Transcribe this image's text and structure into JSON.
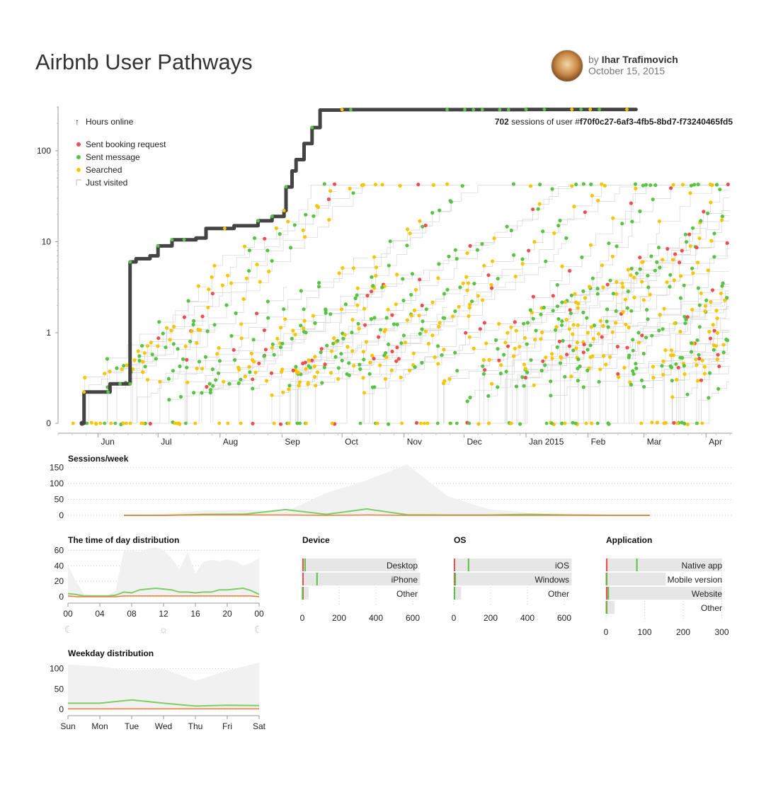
{
  "header": {
    "title": "Airbnb User Pathways",
    "by": "by",
    "author": "Ihar Trafimovich",
    "date": "October 15, 2015"
  },
  "colors": {
    "booking": "#ee4e4e",
    "message": "#57c443",
    "search": "#f7c600",
    "visit": "#cccccc",
    "path": "#444444",
    "area": "#f1f1f1",
    "bar": "#e6e6e6"
  },
  "chart_data": [
    {
      "type": "scatter",
      "id": "pathways",
      "yscale": "symlog",
      "ylabel": "Hours online",
      "yticks": [
        "0",
        "1",
        "10",
        "100"
      ],
      "xticks": [
        "Jun",
        "Jul",
        "Aug",
        "Sep",
        "Oct",
        "Nov",
        "Dec",
        "Jan 2015",
        "Feb",
        "Mar",
        "Apr"
      ],
      "legend": {
        "axis_label": "Hours online",
        "items": [
          {
            "label": "Sent booking request",
            "color": "#ee4e4e"
          },
          {
            "label": "Sent message",
            "color": "#57c443"
          },
          {
            "label": "Searched",
            "color": "#f7c600"
          },
          {
            "label": "Just visited",
            "color": "#cccccc"
          }
        ],
        "placement": "top-left"
      },
      "annotation": {
        "count": "702",
        "text": "sessions of user #",
        "user_id": "f70f0c27-6af3-4fb5-8bd7-f73240465fd5"
      },
      "highlighted_user": {
        "sessions": 702,
        "path": [
          [
            "2014-05-24",
            0
          ],
          [
            "2014-05-25",
            0.17
          ],
          [
            "2014-06-06",
            0.17
          ],
          [
            "2014-06-07",
            0.25
          ],
          [
            "2014-06-17",
            0.25
          ],
          [
            "2014-06-17",
            6
          ],
          [
            "2014-06-20",
            6.5
          ],
          [
            "2014-06-27",
            7
          ],
          [
            "2014-07-01",
            9
          ],
          [
            "2014-07-08",
            10.5
          ],
          [
            "2014-07-20",
            11
          ],
          [
            "2014-07-25",
            14
          ],
          [
            "2014-08-08",
            15
          ],
          [
            "2014-08-20",
            17
          ],
          [
            "2014-08-27",
            19
          ],
          [
            "2014-09-02",
            22
          ],
          [
            "2014-09-03",
            40
          ],
          [
            "2014-09-06",
            60
          ],
          [
            "2014-09-08",
            80
          ],
          [
            "2014-09-12",
            120
          ],
          [
            "2014-09-16",
            180
          ],
          [
            "2014-09-20",
            280
          ],
          [
            "2014-10-01",
            283
          ],
          [
            "2015-01-01",
            285
          ],
          [
            "2015-02-25",
            285
          ]
        ]
      },
      "xrange": [
        "2014-05-12",
        "2015-04-14"
      ],
      "yrange": [
        0,
        300
      ],
      "grid": false
    },
    {
      "type": "area",
      "id": "sessions-week",
      "title": "Sessions/week",
      "yticks": [
        0,
        50,
        100,
        150
      ],
      "ylim": [
        0,
        160
      ],
      "x_weeks": [
        0,
        4,
        8,
        12,
        16,
        20,
        24,
        28,
        32,
        36,
        40,
        44,
        48,
        52
      ],
      "series": [
        {
          "values": [
            0,
            5,
            15,
            18,
            12,
            70,
            110,
            160,
            60,
            20,
            8,
            5,
            3,
            2
          ]
        },
        {
          "values": [
            0,
            0,
            3,
            4,
            18,
            3,
            20,
            2,
            1,
            1,
            3,
            1,
            0,
            0
          ]
        },
        {
          "values": [
            0,
            0,
            1,
            1,
            1,
            0,
            1,
            0,
            0,
            0,
            0,
            0,
            0,
            0
          ]
        }
      ],
      "grid": true
    },
    {
      "type": "area",
      "id": "time-of-day",
      "title": "The time of day distribution",
      "xticks": [
        "00",
        "04",
        "08",
        "12",
        "16",
        "20",
        "00"
      ],
      "yticks": [
        0,
        20,
        40,
        60
      ],
      "ylim": [
        0,
        64
      ],
      "x_hours": [
        0,
        1,
        2,
        3,
        4,
        5,
        6,
        7,
        8,
        9,
        10,
        11,
        12,
        13,
        14,
        15,
        16,
        17,
        18,
        19,
        20,
        21,
        22,
        23,
        24
      ],
      "series": [
        {
          "values": [
            40,
            20,
            4,
            2,
            2,
            2,
            8,
            60,
            60,
            58,
            62,
            64,
            60,
            50,
            35,
            58,
            30,
            45,
            48,
            46,
            48,
            46,
            40,
            44,
            50
          ]
        },
        {
          "values": [
            4,
            3,
            1,
            1,
            1,
            1,
            2,
            6,
            5,
            9,
            10,
            11,
            10,
            9,
            6,
            6,
            5,
            6,
            6,
            9,
            9,
            10,
            11,
            8,
            3
          ]
        },
        {
          "values": [
            1,
            0,
            0,
            0,
            0,
            0,
            0,
            1,
            1,
            1,
            1,
            1,
            1,
            1,
            1,
            1,
            1,
            1,
            1,
            1,
            1,
            1,
            1,
            1,
            0
          ]
        }
      ],
      "grid": true
    },
    {
      "type": "area",
      "id": "weekday",
      "title": "Weekday distribution",
      "xticks": [
        "Sun",
        "Mon",
        "Tue",
        "Wed",
        "Thu",
        "Fri",
        "Sat"
      ],
      "yticks": [
        0,
        50,
        100
      ],
      "ylim": [
        0,
        120
      ],
      "series": [
        {
          "values": [
            110,
            105,
            95,
            100,
            70,
            95,
            115
          ]
        },
        {
          "values": [
            15,
            15,
            23,
            15,
            8,
            10,
            9
          ]
        },
        {
          "values": [
            1,
            1,
            1,
            1,
            1,
            1,
            1
          ]
        }
      ],
      "grid": true
    },
    {
      "type": "bar",
      "id": "device",
      "title": "Device",
      "categories": [
        "Desktop",
        "iPhone",
        "Other"
      ],
      "values": [
        620,
        640,
        35
      ],
      "booking": [
        4,
        3,
        0
      ],
      "message": [
        15,
        80,
        1
      ],
      "xticks": [
        0,
        200,
        400,
        600
      ],
      "xlim": [
        0,
        650
      ],
      "grid": true
    },
    {
      "type": "bar",
      "id": "os",
      "title": "OS",
      "categories": [
        "iOS",
        "Windows",
        "Other"
      ],
      "values": [
        640,
        640,
        40
      ],
      "booking": [
        3,
        3,
        2
      ],
      "message": [
        80,
        8,
        4
      ],
      "xticks": [
        0,
        200,
        400,
        600
      ],
      "xlim": [
        0,
        650
      ],
      "grid": true
    },
    {
      "type": "bar",
      "id": "application",
      "title": "Application",
      "categories": [
        "Native app",
        "Mobile version",
        "Website",
        "Other"
      ],
      "values": [
        300,
        155,
        300,
        22
      ],
      "booking": [
        2,
        1,
        2,
        1
      ],
      "message": [
        80,
        1,
        6,
        1
      ],
      "xticks": [
        0,
        100,
        200,
        300
      ],
      "xlim": [
        0,
        310
      ],
      "grid": true
    }
  ]
}
